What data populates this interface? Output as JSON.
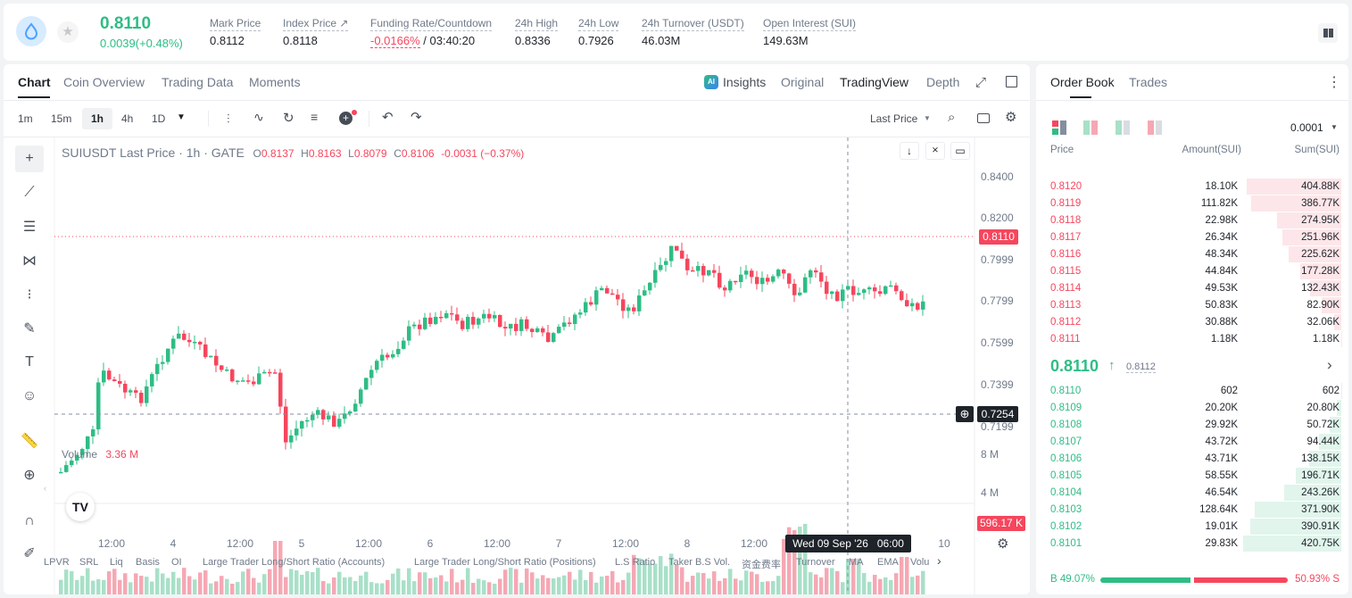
{
  "header": {
    "last_price": "0.8110",
    "change": "0.0039(+0.48%)",
    "stats": [
      {
        "label": "Mark Price",
        "value": "0.8112"
      },
      {
        "label": "Index Price ↗",
        "value": "0.8118"
      },
      {
        "label": "Funding Rate/Countdown",
        "value": "-0.0166%",
        "value2": "/ 03:40:20"
      },
      {
        "label": "24h High",
        "value": "0.8336"
      },
      {
        "label": "24h Low",
        "value": "0.7926"
      },
      {
        "label": "24h Turnover (USDT)",
        "value": "46.03M"
      },
      {
        "label": "Open Interest (SUI)",
        "value": "149.63M"
      }
    ]
  },
  "chart_tabs": [
    "Chart",
    "Coin Overview",
    "Trading Data",
    "Moments"
  ],
  "view_tabs": [
    "Insights",
    "Original",
    "TradingView",
    "Depth"
  ],
  "ai_badge": "AI",
  "intervals": [
    "1m",
    "15m",
    "1h",
    "4h",
    "1D"
  ],
  "price_type": "Last Price",
  "legend": {
    "symbol": "SUIUSDT Last Price · 1h · GATE",
    "o_label": "O",
    "o": "0.8137",
    "h_label": "H",
    "h": "0.8163",
    "l_label": "L",
    "l": "0.8079",
    "c_label": "C",
    "c": "0.8106",
    "chg": "-0.0031 (−0.37%)"
  },
  "volume_legend": {
    "label": "Volume",
    "value": "3.36 M"
  },
  "last_price_tag": "0.8110",
  "crosshair_tag": "0.7254",
  "volume_tag": "596.17 K",
  "crosshair_time": "Wed 09 Sep '26   06:00",
  "y_ticks": [
    "0.8400",
    "0.8200",
    "0.7999",
    "0.7799",
    "0.7599",
    "0.7399",
    "0.7199"
  ],
  "vol_ticks": [
    "8 M",
    "4 M"
  ],
  "x_ticks": [
    "12:00",
    "4",
    "12:00",
    "5",
    "12:00",
    "6",
    "12:00",
    "7",
    "12:00",
    "8",
    "12:00",
    "10"
  ],
  "indicators": [
    "LPVR",
    "SRL",
    "Liq",
    "Basis",
    "OI",
    "Large Trader Long/Short Ratio (Accounts)",
    "Large Trader Long/Short Ratio (Positions)",
    "L.S Ratio",
    "Taker B.S Vol.",
    "资金费率",
    "Turnover",
    "MA",
    "EMA",
    "Volu"
  ],
  "orderbook": {
    "tabs": [
      "Order Book",
      "Trades"
    ],
    "precision": "0.0001",
    "headers": [
      "Price",
      "Amount(SUI)",
      "Sum(SUI)"
    ],
    "asks": [
      {
        "price": "0.8120",
        "amount": "18.10K",
        "sum": "404.88K",
        "depth": 0.962
      },
      {
        "price": "0.8119",
        "amount": "111.82K",
        "sum": "386.77K",
        "depth": 0.919
      },
      {
        "price": "0.8118",
        "amount": "22.98K",
        "sum": "274.95K",
        "depth": 0.654
      },
      {
        "price": "0.8117",
        "amount": "26.34K",
        "sum": "251.96K",
        "depth": 0.599
      },
      {
        "price": "0.8116",
        "amount": "48.34K",
        "sum": "225.62K",
        "depth": 0.536
      },
      {
        "price": "0.8115",
        "amount": "44.84K",
        "sum": "177.28K",
        "depth": 0.421
      },
      {
        "price": "0.8114",
        "amount": "49.53K",
        "sum": "132.43K",
        "depth": 0.315
      },
      {
        "price": "0.8113",
        "amount": "50.83K",
        "sum": "82.90K",
        "depth": 0.197
      },
      {
        "price": "0.8112",
        "amount": "30.88K",
        "sum": "32.06K",
        "depth": 0.076
      },
      {
        "price": "0.8111",
        "amount": "1.18K",
        "sum": "1.18K",
        "depth": 0.003
      }
    ],
    "mid_price": "0.8110",
    "mid_mark": "0.8112",
    "bids": [
      {
        "price": "0.8110",
        "amount": "602",
        "sum": "602",
        "depth": 0.001
      },
      {
        "price": "0.8109",
        "amount": "20.20K",
        "sum": "20.80K",
        "depth": 0.049
      },
      {
        "price": "0.8108",
        "amount": "29.92K",
        "sum": "50.72K",
        "depth": 0.121
      },
      {
        "price": "0.8107",
        "amount": "43.72K",
        "sum": "94.44K",
        "depth": 0.224
      },
      {
        "price": "0.8106",
        "amount": "43.71K",
        "sum": "138.15K",
        "depth": 0.328
      },
      {
        "price": "0.8105",
        "amount": "58.55K",
        "sum": "196.71K",
        "depth": 0.467
      },
      {
        "price": "0.8104",
        "amount": "46.54K",
        "sum": "243.26K",
        "depth": 0.578
      },
      {
        "price": "0.8103",
        "amount": "128.64K",
        "sum": "371.90K",
        "depth": 0.884
      },
      {
        "price": "0.8102",
        "amount": "19.01K",
        "sum": "390.91K",
        "depth": 0.929
      },
      {
        "price": "0.8101",
        "amount": "29.83K",
        "sum": "420.75K",
        "depth": 1.0
      }
    ],
    "buy_label": "B",
    "buy_pct": "49.07%",
    "sell_label": "S",
    "sell_pct": "50.93%",
    "buy_ratio": 0.4907
  },
  "colors": {
    "up": "#2ebd85",
    "down": "#f6465d",
    "up_vol": "#a8e0c8",
    "down_vol": "#f5a8b4"
  }
}
